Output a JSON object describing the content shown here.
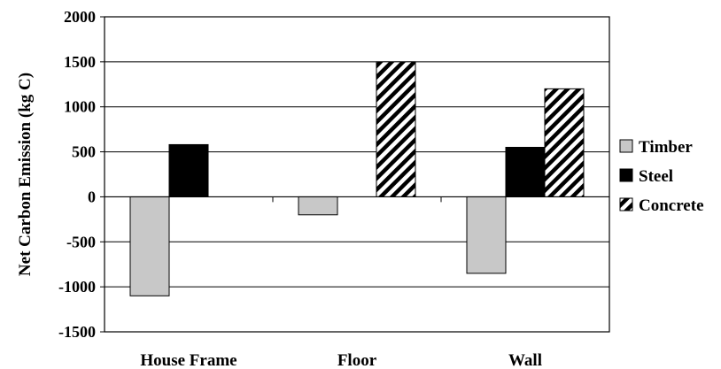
{
  "chart_data": {
    "type": "bar",
    "title": "",
    "xlabel": "",
    "ylabel": "Net Carbon Emission (kg C)",
    "categories": [
      "House Frame",
      "Floor",
      "Wall"
    ],
    "series": [
      {
        "name": "Timber",
        "values": [
          -1100,
          -200,
          -850
        ],
        "color": "#c8c8c8",
        "pattern": "solid"
      },
      {
        "name": "Steel",
        "values": [
          580,
          0,
          550
        ],
        "color": "#000000",
        "pattern": "solid"
      },
      {
        "name": "Concrete",
        "values": [
          0,
          1500,
          1200
        ],
        "color": "#ffffff",
        "pattern": "diagonal-stripes"
      }
    ],
    "ylim": [
      -1500,
      2000
    ],
    "yticks": [
      "2000",
      "1500",
      "1000",
      "500",
      "0",
      "-500",
      "-1000",
      "-1500"
    ],
    "grid": true,
    "legend_position": "right"
  }
}
